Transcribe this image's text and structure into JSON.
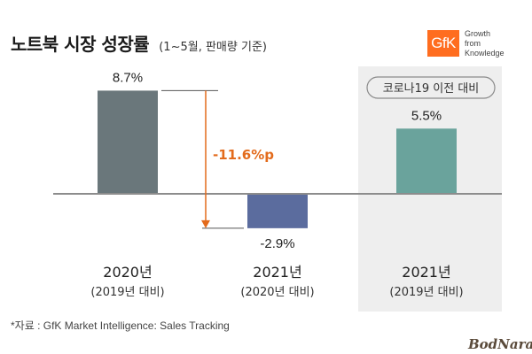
{
  "header": {
    "title": "노트북 시장 성장률",
    "subtitle": "(1~5월, 판매량 기준)"
  },
  "logo": {
    "brand": "GfK",
    "tagline": [
      "Growth",
      "from",
      "Knowledge"
    ],
    "color": "#ff6d1f"
  },
  "chart_data": {
    "type": "bar",
    "categories": [
      "2020년",
      "2021년",
      "2021년"
    ],
    "category_sublabels": [
      "(2019년 대비)",
      "(2020년 대비)",
      "(2019년 대비)"
    ],
    "values": [
      8.7,
      -2.9,
      5.5
    ],
    "value_labels": [
      "8.7%",
      "-2.9%",
      "5.5%"
    ],
    "colors": [
      "#6a777b",
      "#5b6c9e",
      "#6aa39c"
    ],
    "ylim": [
      -5,
      12
    ],
    "grid": false,
    "legend": "none",
    "annotations": {
      "difference_label": "-11.6%p",
      "difference_color": "#e36b1c",
      "highlight_label": "코로나19 이전 대비",
      "highlight_background": "#eeeeee"
    }
  },
  "footer": {
    "source": "*자료 : GfK Market Intelligence: Sales Tracking",
    "watermark": "BodNara"
  }
}
